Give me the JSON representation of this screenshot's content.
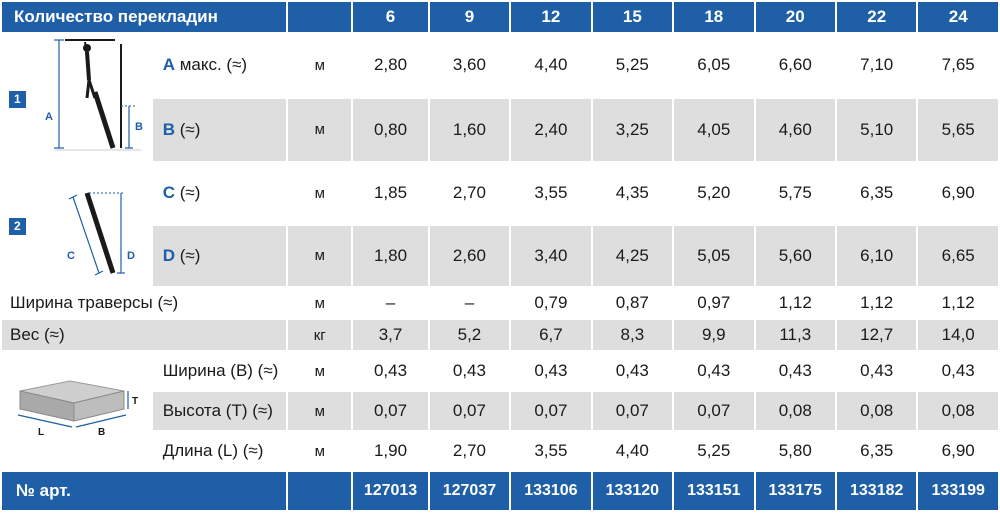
{
  "header": {
    "title": "Количество перекладин",
    "columns": [
      "6",
      "9",
      "12",
      "15",
      "18",
      "20",
      "22",
      "24"
    ]
  },
  "section1": {
    "badge": "1",
    "figure_labels": {
      "a": "A",
      "b": "B"
    },
    "rows": [
      {
        "letter": "A",
        "text": " макс. (≈)",
        "unit": "м",
        "values": [
          "2,80",
          "3,60",
          "4,40",
          "5,25",
          "6,05",
          "6,60",
          "7,10",
          "7,65"
        ]
      },
      {
        "letter": "B",
        "text": " (≈)",
        "unit": "м",
        "values": [
          "0,80",
          "1,60",
          "2,40",
          "3,25",
          "4,05",
          "4,60",
          "5,10",
          "5,65"
        ]
      }
    ]
  },
  "section2": {
    "badge": "2",
    "figure_labels": {
      "c": "C",
      "d": "D"
    },
    "rows": [
      {
        "letter": "C",
        "text": " (≈)",
        "unit": "м",
        "values": [
          "1,85",
          "2,70",
          "3,55",
          "4,35",
          "5,20",
          "5,75",
          "6,35",
          "6,90"
        ]
      },
      {
        "letter": "D",
        "text": " (≈)",
        "unit": "м",
        "values": [
          "1,80",
          "2,60",
          "3,40",
          "4,25",
          "5,05",
          "5,60",
          "6,10",
          "6,65"
        ]
      }
    ]
  },
  "traverse": {
    "label": "Ширина траверсы (≈)",
    "unit": "м",
    "values": [
      "–",
      "–",
      "0,79",
      "0,87",
      "0,97",
      "1,12",
      "1,12",
      "1,12"
    ]
  },
  "weight": {
    "label": "Вес (≈)",
    "unit": "кг",
    "values": [
      "3,7",
      "5,2",
      "6,7",
      "8,3",
      "9,9",
      "11,3",
      "12,7",
      "14,0"
    ]
  },
  "package": {
    "figure_labels": {
      "t": "T",
      "l": "L",
      "b": "B"
    },
    "rows": [
      {
        "label": "Ширина (B) (≈)",
        "unit": "м",
        "values": [
          "0,43",
          "0,43",
          "0,43",
          "0,43",
          "0,43",
          "0,43",
          "0,43",
          "0,43"
        ]
      },
      {
        "label": "Высота (T) (≈)",
        "unit": "м",
        "values": [
          "0,07",
          "0,07",
          "0,07",
          "0,07",
          "0,07",
          "0,08",
          "0,08",
          "0,08"
        ]
      },
      {
        "label": "Длина (L) (≈)",
        "unit": "м",
        "values": [
          "1,90",
          "2,70",
          "3,55",
          "4,40",
          "5,25",
          "5,80",
          "6,35",
          "6,90"
        ]
      }
    ]
  },
  "footer": {
    "title": "№ арт.",
    "values": [
      "127013",
      "127037",
      "133106",
      "133120",
      "133151",
      "133175",
      "133182",
      "133199"
    ]
  },
  "colors": {
    "accent": "#1e5fa8",
    "band": "#dedede"
  }
}
